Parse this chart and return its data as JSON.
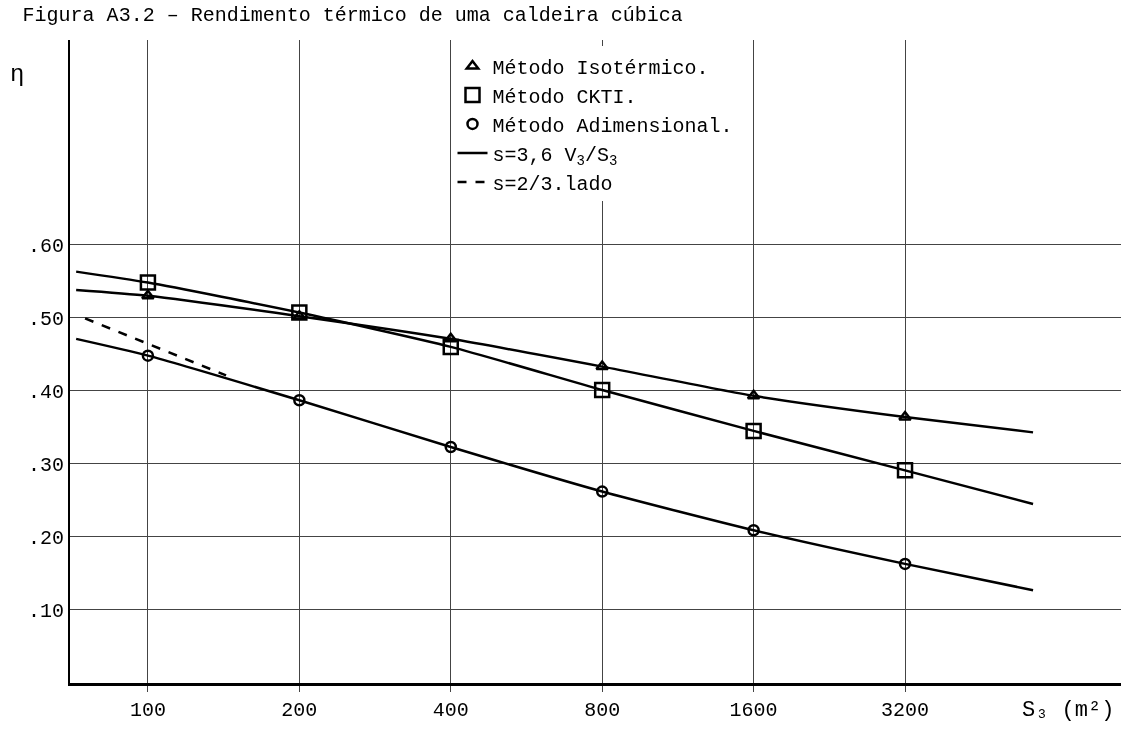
{
  "chart_data": {
    "type": "line",
    "title": "Figura A3.2 – Rendimento térmico de uma caldeira cúbica",
    "xlabel": "S₃ (m²)",
    "ylabel": "η",
    "log": "x",
    "grid": true,
    "legend": "top",
    "xlim": [
      70,
      8600
    ],
    "ylim": [
      0,
      0.88
    ],
    "xticks": [
      100,
      200,
      400,
      800,
      1600,
      3200
    ],
    "yticks": [
      {
        "value": 0.1,
        "label": ".10"
      },
      {
        "value": 0.2,
        "label": ".20"
      },
      {
        "value": 0.3,
        "label": ".30"
      },
      {
        "value": 0.4,
        "label": ".40"
      },
      {
        "value": 0.5,
        "label": ".50"
      },
      {
        "value": 0.6,
        "label": ".60"
      }
    ],
    "series": [
      {
        "name": "Método Isotérmico.",
        "type": "scatter",
        "marker": "triangle",
        "color": "#000000",
        "x": [
          100,
          200,
          400,
          800,
          1600,
          3200
        ],
        "values": [
          0.53,
          0.502,
          0.471,
          0.433,
          0.393,
          0.364
        ]
      },
      {
        "name": "Método CKTI.",
        "type": "scatter",
        "marker": "square",
        "color": "#000000",
        "x": [
          100,
          200,
          400,
          800,
          1600,
          3200
        ],
        "values": [
          0.548,
          0.507,
          0.46,
          0.401,
          0.345,
          0.291
        ]
      },
      {
        "name": "Método Adimensional.",
        "type": "scatter",
        "marker": "circle",
        "color": "#000000",
        "x": [
          100,
          200,
          400,
          800,
          1600,
          3200
        ],
        "values": [
          0.448,
          0.387,
          0.323,
          0.262,
          0.209,
          0.163
        ]
      },
      {
        "name": "s=3,6 V$_{3}$/S$_{3}$",
        "line_style": "solid",
        "color": "#000000",
        "x": [
          72,
          100,
          200,
          400,
          800,
          1600,
          3200,
          5750
        ],
        "values": [
          0.538,
          0.53,
          0.502,
          0.471,
          0.433,
          0.393,
          0.364,
          0.343
        ]
      },
      {
        "line_style": "solid",
        "color": "#000000",
        "x": [
          72,
          100,
          200,
          400,
          800,
          1600,
          3200,
          5750
        ],
        "values": [
          0.563,
          0.548,
          0.507,
          0.46,
          0.401,
          0.345,
          0.291,
          0.245
        ]
      },
      {
        "line_style": "solid",
        "color": "#000000",
        "x": [
          72,
          100,
          200,
          400,
          800,
          1600,
          3200,
          5750
        ],
        "values": [
          0.471,
          0.448,
          0.387,
          0.323,
          0.262,
          0.209,
          0.163,
          0.127
        ]
      },
      {
        "name": "s=2/3.lado",
        "line_style": "dashed",
        "color": "#000000",
        "x": [
          75,
          143
        ],
        "values": [
          0.499,
          0.421
        ]
      }
    ]
  }
}
